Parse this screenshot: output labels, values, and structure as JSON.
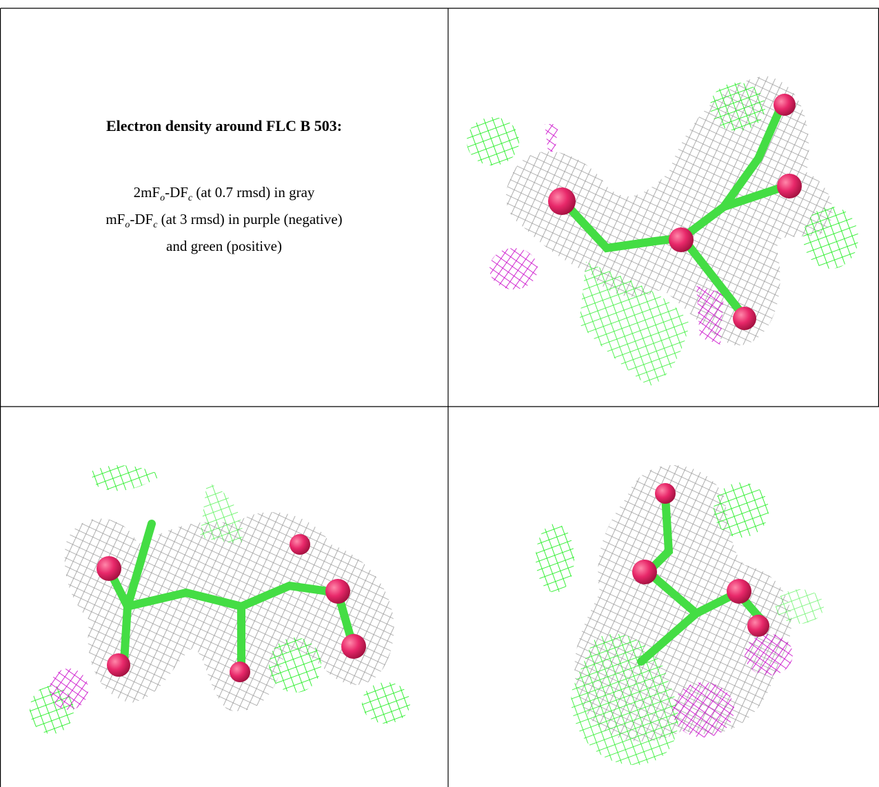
{
  "caption": {
    "title": "Electron density around FLC B 503:",
    "line1": [
      "2mF",
      "o",
      "-DF",
      "c",
      " (at 0.7 rmsd) in gray"
    ],
    "line2": [
      "mF",
      "o",
      "-DF",
      "c",
      " (at 3 rmsd) in purple (negative)"
    ],
    "line3": "and green (positive)"
  }
}
